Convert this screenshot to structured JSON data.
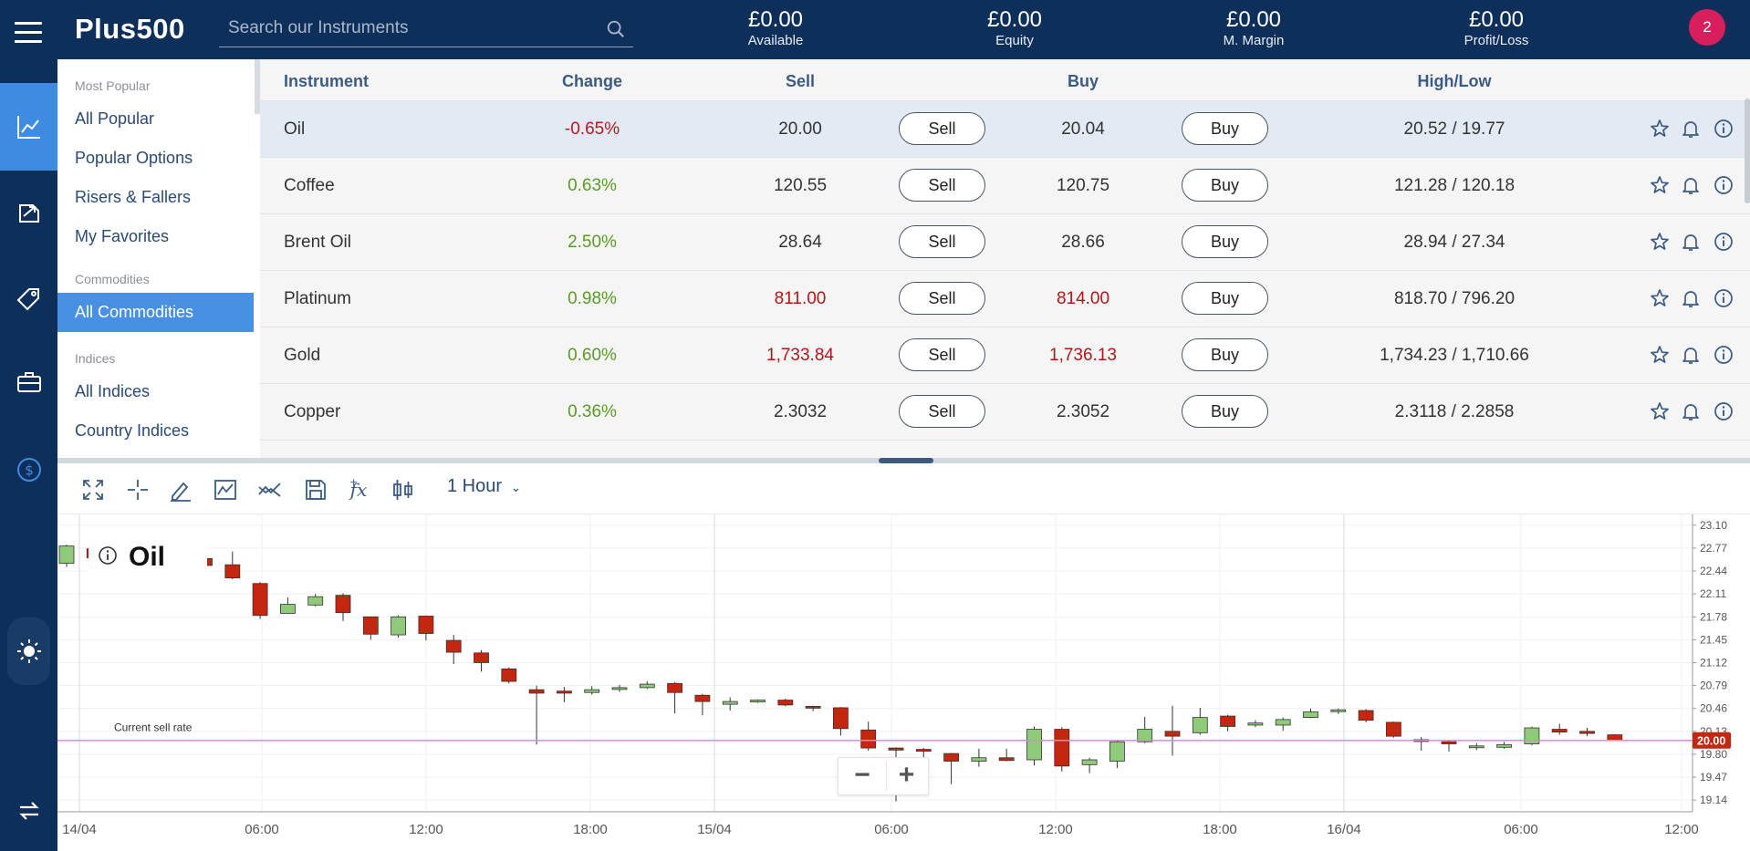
{
  "header": {
    "logo_text": "Plus500",
    "search_placeholder": "Search our Instruments",
    "stats": [
      {
        "value": "£0.00",
        "label": "Available"
      },
      {
        "value": "£0.00",
        "label": "Equity"
      },
      {
        "value": "£0.00",
        "label": "M. Margin"
      },
      {
        "value": "£0.00",
        "label": "Profit/Loss"
      }
    ],
    "notifications_count": "2"
  },
  "sidebar": {
    "groups": [
      {
        "heading": "Most Popular",
        "items": [
          "All Popular",
          "Popular Options",
          "Risers & Fallers",
          "My Favorites"
        ]
      },
      {
        "heading": "Commodities",
        "items": [
          "All Commodities"
        ]
      },
      {
        "heading": "Indices",
        "items": [
          "All Indices",
          "Country Indices"
        ]
      }
    ],
    "selected_item": "All Commodities"
  },
  "table": {
    "columns": [
      "Instrument",
      "Change",
      "Sell",
      "Buy",
      "High/Low"
    ],
    "sell_label": "Sell",
    "buy_label": "Buy",
    "rows": [
      {
        "instrument": "Oil",
        "change": "-0.65%",
        "sell": "20.00",
        "buy": "20.04",
        "highlow": "20.52 / 19.77"
      },
      {
        "instrument": "Coffee",
        "change": "0.63%",
        "sell": "120.55",
        "buy": "120.75",
        "highlow": "121.28 / 120.18"
      },
      {
        "instrument": "Brent Oil",
        "change": "2.50%",
        "sell": "28.64",
        "buy": "28.66",
        "highlow": "28.94 / 27.34"
      },
      {
        "instrument": "Platinum",
        "change": "0.98%",
        "sell": "811.00",
        "buy": "814.00",
        "highlow": "818.70 / 796.20"
      },
      {
        "instrument": "Gold",
        "change": "0.60%",
        "sell": "1,733.84",
        "buy": "1,736.13",
        "highlow": "1,734.23 / 1,710.66"
      },
      {
        "instrument": "Copper",
        "change": "0.36%",
        "sell": "2.3032",
        "buy": "2.3052",
        "highlow": "2.3118 / 2.2858"
      }
    ],
    "colors": {
      "negative": "#c0151f",
      "positive": "#5a9a2a",
      "down_price": "#b01818",
      "header_text": "#3c5b83"
    }
  },
  "chart_toolbar": {
    "interval": "1 Hour",
    "tools": [
      "fullscreen-icon",
      "crosshair-icon",
      "draw-icon",
      "chart-type-icon",
      "indicator-line-icon",
      "save-icon",
      "function-icon",
      "compare-icon"
    ]
  },
  "chart_data": {
    "type": "candlestick",
    "instrument": "Oil",
    "annotation": "Current sell rate",
    "current_value": "20.00",
    "current_value_num": 20.0,
    "ylim": [
      19.05,
      23.15
    ],
    "y_ticks": [
      "23.10",
      "22.77",
      "22.44",
      "22.11",
      "21.78",
      "21.45",
      "21.12",
      "20.79",
      "20.46",
      "20.13",
      "19.80",
      "19.47",
      "19.14"
    ],
    "x_ticks": [
      "14/04",
      "06:00",
      "12:00",
      "18:00",
      "15/04",
      "06:00",
      "12:00",
      "18:00",
      "16/04",
      "06:00",
      "12:00"
    ],
    "up_color": "#8fc97a",
    "down_color": "#c4260f",
    "line_color": "#ee7ee5",
    "candles": [
      {
        "o": 22.55,
        "h": 22.82,
        "l": 22.5,
        "c": 22.8
      },
      {
        "o": 22.76,
        "h": 22.8,
        "l": 22.62,
        "c": 22.63
      },
      {
        "o": 22.63,
        "h": 22.78,
        "l": 22.58,
        "c": 22.74
      },
      {
        "o": 22.7,
        "h": 22.76,
        "l": 22.66,
        "c": 22.74
      },
      {
        "o": 22.72,
        "h": 22.74,
        "l": 22.6,
        "c": 22.61
      },
      {
        "o": 22.62,
        "h": 22.68,
        "l": 22.46,
        "c": 22.52
      },
      {
        "o": 22.53,
        "h": 22.72,
        "l": 22.32,
        "c": 22.34
      },
      {
        "o": 22.26,
        "h": 22.28,
        "l": 21.75,
        "c": 21.8
      },
      {
        "o": 21.83,
        "h": 22.06,
        "l": 21.83,
        "c": 21.96
      },
      {
        "o": 21.95,
        "h": 22.11,
        "l": 21.93,
        "c": 22.07
      },
      {
        "o": 22.09,
        "h": 22.12,
        "l": 21.72,
        "c": 21.84
      },
      {
        "o": 21.78,
        "h": 21.78,
        "l": 21.45,
        "c": 21.53
      },
      {
        "o": 21.52,
        "h": 21.8,
        "l": 21.48,
        "c": 21.78
      },
      {
        "o": 21.79,
        "h": 21.8,
        "l": 21.44,
        "c": 21.54
      },
      {
        "o": 21.44,
        "h": 21.52,
        "l": 21.1,
        "c": 21.27
      },
      {
        "o": 21.26,
        "h": 21.3,
        "l": 20.99,
        "c": 21.12
      },
      {
        "o": 21.03,
        "h": 21.05,
        "l": 20.82,
        "c": 20.85
      },
      {
        "o": 20.73,
        "h": 20.79,
        "l": 19.94,
        "c": 20.68
      },
      {
        "o": 20.71,
        "h": 20.77,
        "l": 20.55,
        "c": 20.68
      },
      {
        "o": 20.69,
        "h": 20.78,
        "l": 20.66,
        "c": 20.73
      },
      {
        "o": 20.74,
        "h": 20.8,
        "l": 20.7,
        "c": 20.76
      },
      {
        "o": 20.76,
        "h": 20.85,
        "l": 20.74,
        "c": 20.81
      },
      {
        "o": 20.82,
        "h": 20.84,
        "l": 20.39,
        "c": 20.69
      },
      {
        "o": 20.65,
        "h": 20.67,
        "l": 20.36,
        "c": 20.56
      },
      {
        "o": 20.52,
        "h": 20.62,
        "l": 20.43,
        "c": 20.56
      },
      {
        "o": 20.56,
        "h": 20.59,
        "l": 20.54,
        "c": 20.58
      },
      {
        "o": 20.58,
        "h": 20.6,
        "l": 20.49,
        "c": 20.51
      },
      {
        "o": 20.49,
        "h": 20.5,
        "l": 20.42,
        "c": 20.48
      },
      {
        "o": 20.47,
        "h": 20.48,
        "l": 20.07,
        "c": 20.17
      },
      {
        "o": 20.15,
        "h": 20.27,
        "l": 19.85,
        "c": 19.89
      },
      {
        "o": 19.89,
        "h": 19.9,
        "l": 19.12,
        "c": 19.86
      },
      {
        "o": 19.87,
        "h": 19.89,
        "l": 19.62,
        "c": 19.85
      },
      {
        "o": 19.81,
        "h": 19.82,
        "l": 19.37,
        "c": 19.7
      },
      {
        "o": 19.7,
        "h": 19.88,
        "l": 19.62,
        "c": 19.75
      },
      {
        "o": 19.75,
        "h": 19.88,
        "l": 19.7,
        "c": 19.71
      },
      {
        "o": 19.72,
        "h": 20.2,
        "l": 19.64,
        "c": 20.16
      },
      {
        "o": 20.16,
        "h": 20.19,
        "l": 19.55,
        "c": 19.63
      },
      {
        "o": 19.65,
        "h": 19.75,
        "l": 19.53,
        "c": 19.72
      },
      {
        "o": 19.7,
        "h": 20.0,
        "l": 19.6,
        "c": 19.98
      },
      {
        "o": 19.98,
        "h": 20.34,
        "l": 19.96,
        "c": 20.16
      },
      {
        "o": 20.13,
        "h": 20.5,
        "l": 19.78,
        "c": 20.06
      },
      {
        "o": 20.11,
        "h": 20.47,
        "l": 20.08,
        "c": 20.33
      },
      {
        "o": 20.35,
        "h": 20.37,
        "l": 20.13,
        "c": 20.2
      },
      {
        "o": 20.22,
        "h": 20.29,
        "l": 20.19,
        "c": 20.25
      },
      {
        "o": 20.22,
        "h": 20.33,
        "l": 20.14,
        "c": 20.3
      },
      {
        "o": 20.33,
        "h": 20.46,
        "l": 20.32,
        "c": 20.41
      },
      {
        "o": 20.42,
        "h": 20.46,
        "l": 20.38,
        "c": 20.44
      },
      {
        "o": 20.43,
        "h": 20.45,
        "l": 20.26,
        "c": 20.29
      },
      {
        "o": 20.26,
        "h": 20.27,
        "l": 20.04,
        "c": 20.06
      },
      {
        "o": 20.01,
        "h": 20.05,
        "l": 19.85,
        "c": 19.99
      },
      {
        "o": 19.98,
        "h": 20.0,
        "l": 19.84,
        "c": 19.95
      },
      {
        "o": 19.92,
        "h": 19.96,
        "l": 19.86,
        "c": 19.92
      },
      {
        "o": 19.9,
        "h": 19.98,
        "l": 19.88,
        "c": 19.94
      },
      {
        "o": 19.95,
        "h": 20.2,
        "l": 19.93,
        "c": 20.18
      },
      {
        "o": 20.16,
        "h": 20.24,
        "l": 20.08,
        "c": 20.12
      },
      {
        "o": 20.13,
        "h": 20.18,
        "l": 20.06,
        "c": 20.1
      },
      {
        "o": 20.08,
        "h": 20.09,
        "l": 19.99,
        "c": 20.0
      }
    ]
  }
}
